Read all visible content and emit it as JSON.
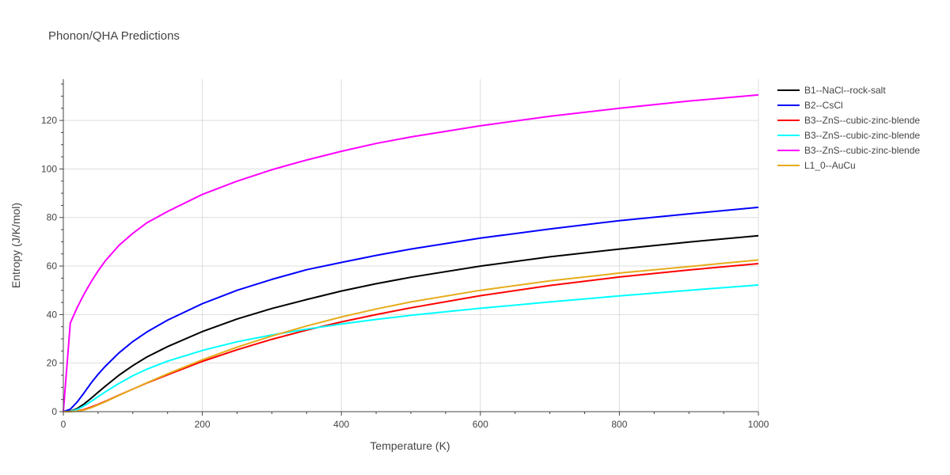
{
  "chart_data": {
    "type": "line",
    "title": "Phonon/QHA Predictions",
    "xlabel": "Temperature (K)",
    "ylabel": "Entropy (J/K/mol)",
    "xlim": [
      0,
      1000
    ],
    "ylim": [
      0,
      137
    ],
    "xticks": [
      0,
      200,
      400,
      600,
      800,
      1000
    ],
    "yticks": [
      0,
      20,
      40,
      60,
      80,
      100,
      120
    ],
    "grid": true,
    "legend_position": "right",
    "x": [
      0,
      10,
      20,
      30,
      40,
      50,
      60,
      80,
      100,
      120,
      150,
      200,
      250,
      300,
      350,
      400,
      450,
      500,
      600,
      700,
      800,
      900,
      1000
    ],
    "series": [
      {
        "name": "B1--NaCl--rock-salt",
        "color": "#000000",
        "values": [
          0,
          0.2,
          1.3,
          3.2,
          5.5,
          8.0,
          10.4,
          15.0,
          19.0,
          22.5,
          26.8,
          33.0,
          38.2,
          42.5,
          46.2,
          49.7,
          52.7,
          55.4,
          60.0,
          63.8,
          67.0,
          69.9,
          72.5
        ]
      },
      {
        "name": "B2--CsCl",
        "color": "#0000ff",
        "values": [
          0,
          1.0,
          4.0,
          7.8,
          11.8,
          15.4,
          18.6,
          24.2,
          28.9,
          32.8,
          37.7,
          44.5,
          50.0,
          54.5,
          58.5,
          61.5,
          64.4,
          67.0,
          71.5,
          75.3,
          78.7,
          81.5,
          84.2
        ]
      },
      {
        "name": "B3--ZnS--cubic-zinc-blende",
        "color": "#ff0000",
        "values": [
          0,
          0.05,
          0.3,
          0.9,
          1.9,
          3.0,
          4.2,
          6.8,
          9.3,
          11.8,
          15.2,
          20.7,
          25.5,
          29.8,
          33.6,
          37.0,
          40.0,
          42.8,
          47.8,
          52.0,
          55.5,
          58.4,
          61.0
        ]
      },
      {
        "name": "B3--ZnS--cubic-zinc-blende",
        "color": "#00ffff",
        "values": [
          0,
          0.1,
          0.9,
          2.4,
          4.2,
          6.2,
          8.1,
          11.6,
          14.8,
          17.5,
          20.8,
          25.2,
          28.8,
          31.6,
          34.0,
          36.1,
          38.0,
          39.7,
          42.6,
          45.2,
          47.7,
          50.0,
          52.2
        ]
      },
      {
        "name": "B3--ZnS--cubic-zinc-blende",
        "color": "#ff00ff",
        "values": [
          0,
          36.5,
          43.0,
          48.5,
          53.5,
          58.0,
          62.0,
          68.5,
          73.5,
          77.8,
          82.5,
          89.5,
          95.0,
          99.7,
          103.7,
          107.3,
          110.5,
          113.2,
          117.8,
          121.7,
          125.0,
          128.0,
          130.5
        ]
      },
      {
        "name": "L1_0--AuCu",
        "color": "#e6ac1c",
        "values": [
          0,
          0.03,
          0.2,
          0.7,
          1.6,
          2.8,
          4.0,
          6.7,
          9.3,
          11.9,
          15.6,
          21.4,
          26.6,
          31.2,
          35.3,
          39.0,
          42.3,
          45.2,
          50.0,
          53.9,
          57.1,
          59.8,
          62.5
        ]
      }
    ]
  }
}
